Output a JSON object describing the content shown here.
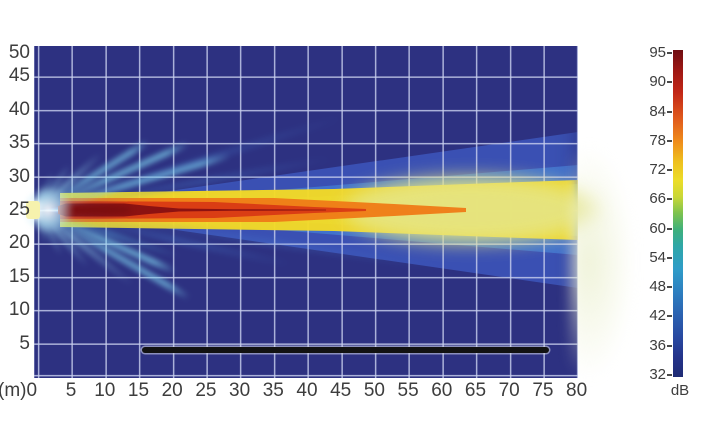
{
  "axes": {
    "x": {
      "unit_origin_label": "(m)0",
      "ticks": [
        5,
        10,
        15,
        20,
        25,
        30,
        35,
        40,
        45,
        50,
        55,
        60,
        65,
        70,
        75,
        80
      ]
    },
    "y": {
      "ticks": [
        50,
        45,
        40,
        35,
        30,
        25,
        20,
        15,
        10,
        5
      ]
    }
  },
  "colorbar": {
    "unit": "dB",
    "ticks": [
      95,
      90,
      84,
      78,
      72,
      66,
      60,
      54,
      48,
      42,
      36,
      32
    ]
  },
  "colors": {
    "plot_background": "#2d3181",
    "grid_line": "#cad1ef",
    "beam_core": "#8c1211",
    "beam_red": "#da3d14",
    "beam_orange": "#ef7d18",
    "beam_yellow": "#f4da26",
    "far_field_yellow": "#e6e584",
    "side_lobe_cyan": "#82dbf3",
    "glow_blue": "#3c55b8",
    "overlay_bar": "#121212",
    "label_text": "#3d3d3d"
  },
  "chart_data": {
    "type": "heatmap",
    "title": "",
    "xlabel": "(m)",
    "ylabel": "(m)",
    "x_range": [
      0,
      80
    ],
    "y_range": [
      0,
      50
    ],
    "x_ticks": [
      0,
      5,
      10,
      15,
      20,
      25,
      30,
      35,
      40,
      45,
      50,
      55,
      60,
      65,
      70,
      75,
      80
    ],
    "y_ticks": [
      5,
      10,
      15,
      20,
      25,
      30,
      35,
      40,
      45,
      50
    ],
    "grid": true,
    "colorbar": {
      "label": "dB",
      "min": 32,
      "max": 95,
      "ticks": [
        95,
        90,
        84,
        78,
        72,
        66,
        60,
        54,
        48,
        42,
        36,
        32
      ],
      "orientation": "vertical",
      "position": "right"
    },
    "description": "Sound-pressure-level field of a highly directional acoustic beam radiating horizontally from a source at the left edge, with main lobe along y = 25 m, cyan side lobes fanning from the source, and a pale far-field glow extending past 80 m.",
    "source_position_m": {
      "x": 0,
      "y": 25
    },
    "beam_axis_y_m": 25,
    "main_lobe_centerline": [
      {
        "x_m": 2,
        "spl_db": 95
      },
      {
        "x_m": 10,
        "spl_db": 95
      },
      {
        "x_m": 20,
        "spl_db": 94
      },
      {
        "x_m": 30,
        "spl_db": 92
      },
      {
        "x_m": 40,
        "spl_db": 90
      },
      {
        "x_m": 50,
        "spl_db": 82
      },
      {
        "x_m": 60,
        "spl_db": 76
      },
      {
        "x_m": 70,
        "spl_db": 73
      },
      {
        "x_m": 80,
        "spl_db": 70
      }
    ],
    "dark_red_core_extent_m": {
      "x_start": 4,
      "x_thick_end": 17,
      "x_tail_end": 43
    },
    "side_lobe_level_db": [
      45,
      58
    ],
    "background_level_db": 32,
    "overlay_bar": {
      "x_start_m": 16,
      "x_end_m": 76,
      "y_m": 4
    }
  }
}
